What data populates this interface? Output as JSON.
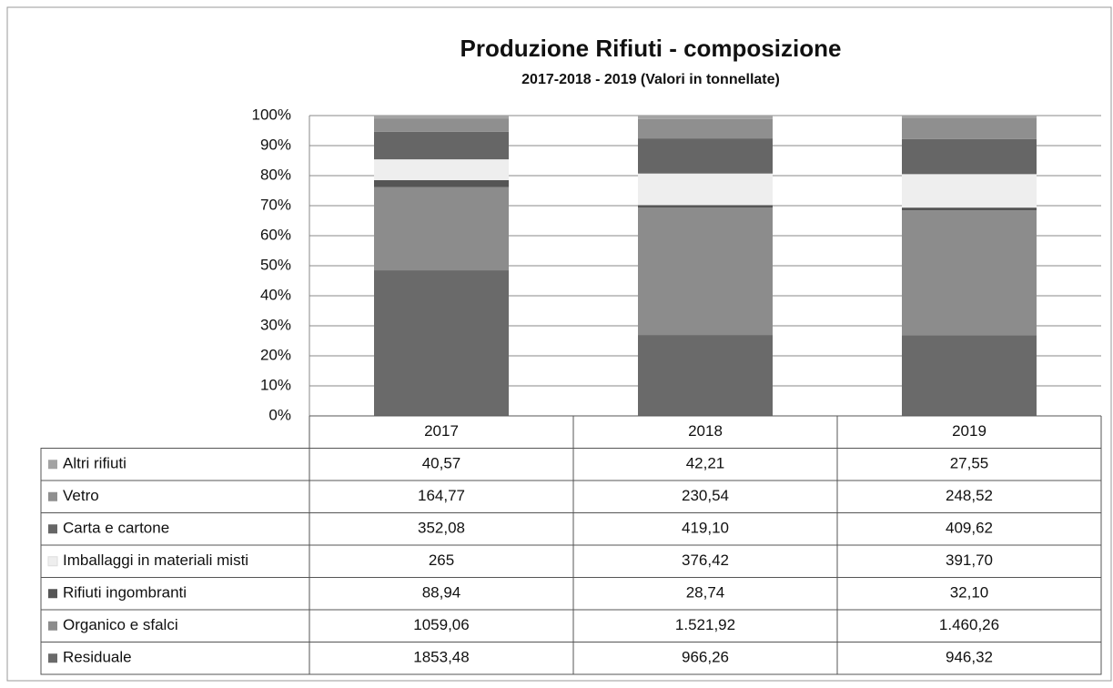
{
  "chart_data": {
    "type": "stacked_percent_bar",
    "title": "Produzione Rifiuti - composizione",
    "subtitle": "2017-2018 - 2019 (Valori in tonnellate)",
    "categories": [
      "2017",
      "2018",
      "2019"
    ],
    "series": [
      {
        "name": "Residuale",
        "color": "#6a6a6a",
        "values": [
          1853.48,
          966.26,
          946.32
        ],
        "value_labels": [
          "1853,48",
          "966,26",
          "946,32"
        ]
      },
      {
        "name": "Organico e sfalci",
        "color": "#8c8c8c",
        "values": [
          1059.06,
          1521.92,
          1460.26
        ],
        "value_labels": [
          "1059,06",
          "1.521,92",
          "1.460,26"
        ]
      },
      {
        "name": "Rifiuti ingombranti",
        "color": "#555555",
        "values": [
          88.94,
          28.74,
          32.1
        ],
        "value_labels": [
          "88,94",
          "28,74",
          "32,10"
        ]
      },
      {
        "name": "Imballaggi in materiali misti",
        "color": "#eeeeee",
        "values": [
          265,
          376.42,
          391.7
        ],
        "value_labels": [
          "265",
          "376,42",
          "391,70"
        ]
      },
      {
        "name": "Carta e cartone",
        "color": "#666666",
        "values": [
          352.08,
          419.1,
          409.62
        ],
        "value_labels": [
          "352,08",
          "419,10",
          "409,62"
        ]
      },
      {
        "name": "Vetro",
        "color": "#8f8f8f",
        "values": [
          164.77,
          230.54,
          248.52
        ],
        "value_labels": [
          "164,77",
          "230,54",
          "248,52"
        ]
      },
      {
        "name": "Altri rifiuti",
        "color": "#a3a3a3",
        "values": [
          40.57,
          42.21,
          27.55
        ],
        "value_labels": [
          "40,57",
          "42,21",
          "27,55"
        ]
      }
    ],
    "ylim": [
      0,
      100
    ],
    "yticks": [
      {
        "value": 0,
        "label": "0%"
      },
      {
        "value": 10,
        "label": "10%"
      },
      {
        "value": 20,
        "label": "20%"
      },
      {
        "value": 30,
        "label": "30%"
      },
      {
        "value": 40,
        "label": "40%"
      },
      {
        "value": 50,
        "label": "50%"
      },
      {
        "value": 60,
        "label": "60%"
      },
      {
        "value": 70,
        "label": "70%"
      },
      {
        "value": 80,
        "label": "80%"
      },
      {
        "value": 90,
        "label": "90%"
      },
      {
        "value": 100,
        "label": "100%"
      }
    ],
    "grid": true
  }
}
